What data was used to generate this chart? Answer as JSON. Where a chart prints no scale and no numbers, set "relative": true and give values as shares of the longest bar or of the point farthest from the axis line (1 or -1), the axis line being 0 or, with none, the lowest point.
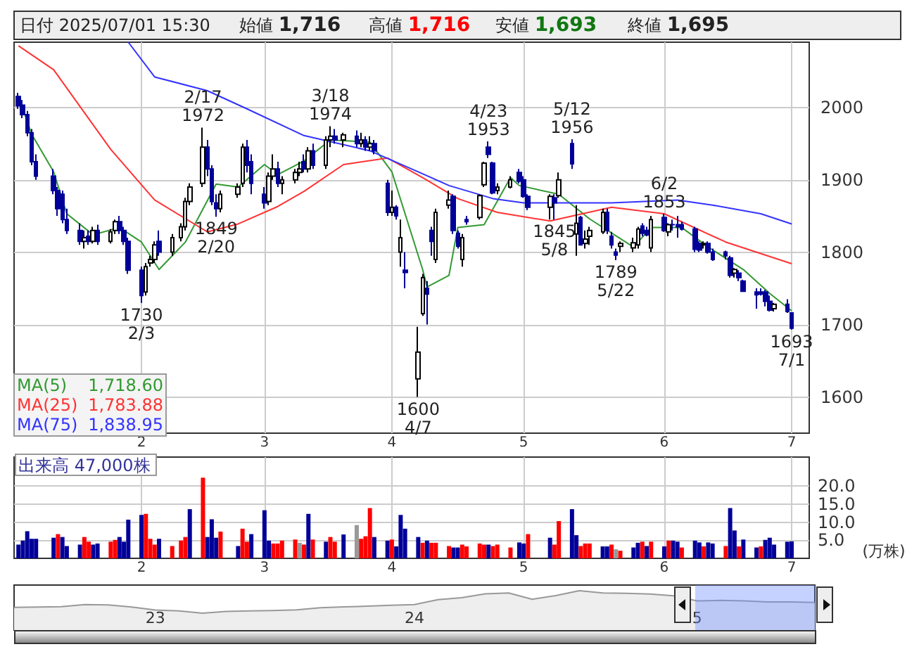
{
  "chart_data": [
    {
      "type": "candlestick",
      "xlim": [
        "2025-01-05",
        "2025-07-05"
      ],
      "xticks": [
        {
          "value": "2025-02-03",
          "label": "2"
        },
        {
          "value": "2025-03-03",
          "label": "3"
        },
        {
          "value": "2025-04-01",
          "label": "4"
        },
        {
          "value": "2025-05-01",
          "label": "5"
        },
        {
          "value": "2025-06-02",
          "label": "6"
        },
        {
          "value": "2025-07-01",
          "label": "7"
        }
      ],
      "ylim": [
        1550,
        2090
      ],
      "yticks": [
        1600,
        1700,
        1800,
        1900,
        2000
      ],
      "grid": true,
      "x": [
        "2025-01-06",
        "2025-01-07",
        "2025-01-08",
        "2025-01-09",
        "2025-01-10",
        "2025-01-14",
        "2025-01-15",
        "2025-01-16",
        "2025-01-17",
        "2025-01-20",
        "2025-01-21",
        "2025-01-22",
        "2025-01-23",
        "2025-01-24",
        "2025-01-27",
        "2025-01-28",
        "2025-01-29",
        "2025-01-30",
        "2025-01-31",
        "2025-02-03",
        "2025-02-04",
        "2025-02-05",
        "2025-02-06",
        "2025-02-07",
        "2025-02-10",
        "2025-02-12",
        "2025-02-13",
        "2025-02-14",
        "2025-02-17",
        "2025-02-18",
        "2025-02-19",
        "2025-02-20",
        "2025-02-21",
        "2025-02-25",
        "2025-02-26",
        "2025-02-27",
        "2025-02-28",
        "2025-03-03",
        "2025-03-04",
        "2025-03-05",
        "2025-03-06",
        "2025-03-07",
        "2025-03-10",
        "2025-03-11",
        "2025-03-12",
        "2025-03-13",
        "2025-03-14",
        "2025-03-17",
        "2025-03-18",
        "2025-03-19",
        "2025-03-21",
        "2025-03-24",
        "2025-03-25",
        "2025-03-26",
        "2025-03-27",
        "2025-03-28",
        "2025-03-31",
        "2025-04-01",
        "2025-04-02",
        "2025-04-03",
        "2025-04-04",
        "2025-04-07",
        "2025-04-08",
        "2025-04-09",
        "2025-04-10",
        "2025-04-11",
        "2025-04-14",
        "2025-04-15",
        "2025-04-16",
        "2025-04-17",
        "2025-04-18",
        "2025-04-21",
        "2025-04-22",
        "2025-04-23",
        "2025-04-24",
        "2025-04-25",
        "2025-04-28",
        "2025-04-30",
        "2025-05-01",
        "2025-05-02",
        "2025-05-07",
        "2025-05-08",
        "2025-05-09",
        "2025-05-12",
        "2025-05-13",
        "2025-05-14",
        "2025-05-15",
        "2025-05-16",
        "2025-05-19",
        "2025-05-20",
        "2025-05-21",
        "2025-05-22",
        "2025-05-23",
        "2025-05-26",
        "2025-05-27",
        "2025-05-28",
        "2025-05-29",
        "2025-05-30",
        "2025-06-02",
        "2025-06-03",
        "2025-06-04",
        "2025-06-05",
        "2025-06-06",
        "2025-06-09",
        "2025-06-10",
        "2025-06-11",
        "2025-06-12",
        "2025-06-13",
        "2025-06-16",
        "2025-06-17",
        "2025-06-18",
        "2025-06-19",
        "2025-06-20",
        "2025-06-23",
        "2025-06-24",
        "2025-06-25",
        "2025-06-26",
        "2025-06-27",
        "2025-06-30",
        "2025-07-01"
      ],
      "ohlc": [
        [
          2015,
          2020,
          1998,
          2002
        ],
        [
          2003,
          2010,
          1985,
          1990
        ],
        [
          1990,
          1995,
          1960,
          1965
        ],
        [
          1965,
          1970,
          1920,
          1925
        ],
        [
          1925,
          1935,
          1900,
          1905
        ],
        [
          1905,
          1915,
          1880,
          1885
        ],
        [
          1885,
          1890,
          1850,
          1860
        ],
        [
          1880,
          1885,
          1840,
          1845
        ],
        [
          1845,
          1860,
          1825,
          1830
        ],
        [
          1830,
          1840,
          1810,
          1815
        ],
        [
          1815,
          1830,
          1805,
          1820
        ],
        [
          1822,
          1830,
          1810,
          1815
        ],
        [
          1815,
          1835,
          1812,
          1830
        ],
        [
          1830,
          1838,
          1810,
          1815
        ],
        [
          1815,
          1832,
          1812,
          1828
        ],
        [
          1830,
          1845,
          1825,
          1842
        ],
        [
          1842,
          1850,
          1825,
          1830
        ],
        [
          1830,
          1835,
          1810,
          1815
        ],
        [
          1815,
          1820,
          1770,
          1775
        ],
        [
          1775,
          1780,
          1730,
          1740
        ],
        [
          1745,
          1785,
          1740,
          1780
        ],
        [
          1785,
          1795,
          1780,
          1790
        ],
        [
          1790,
          1815,
          1785,
          1810
        ],
        [
          1815,
          1830,
          1795,
          1800
        ],
        [
          1800,
          1825,
          1795,
          1820
        ],
        [
          1820,
          1840,
          1815,
          1835
        ],
        [
          1835,
          1875,
          1830,
          1870
        ],
        [
          1870,
          1895,
          1865,
          1890
        ],
        [
          1895,
          1972,
          1890,
          1945
        ],
        [
          1945,
          1955,
          1905,
          1915
        ],
        [
          1915,
          1920,
          1865,
          1870
        ],
        [
          1868,
          1880,
          1849,
          1860
        ],
        [
          1860,
          1885,
          1855,
          1880
        ],
        [
          1880,
          1895,
          1875,
          1890
        ],
        [
          1895,
          1950,
          1890,
          1945
        ],
        [
          1945,
          1955,
          1910,
          1920
        ],
        [
          1925,
          1935,
          1880,
          1895
        ],
        [
          1880,
          1890,
          1860,
          1868
        ],
        [
          1870,
          1910,
          1865,
          1905
        ],
        [
          1905,
          1935,
          1900,
          1915
        ],
        [
          1915,
          1925,
          1890,
          1895
        ],
        [
          1895,
          1905,
          1880,
          1900
        ],
        [
          1900,
          1915,
          1895,
          1910
        ],
        [
          1910,
          1925,
          1905,
          1915
        ],
        [
          1925,
          1935,
          1910,
          1915
        ],
        [
          1915,
          1945,
          1910,
          1940
        ],
        [
          1940,
          1950,
          1915,
          1920
        ],
        [
          1920,
          1960,
          1915,
          1955
        ],
        [
          1955,
          1974,
          1945,
          1960
        ],
        [
          1960,
          1970,
          1950,
          1955
        ],
        [
          1955,
          1965,
          1945,
          1962
        ],
        [
          1960,
          1968,
          1945,
          1950
        ],
        [
          1950,
          1965,
          1945,
          1955
        ],
        [
          1955,
          1960,
          1940,
          1945
        ],
        [
          1945,
          1960,
          1940,
          1950
        ],
        [
          1950,
          1955,
          1935,
          1940
        ],
        [
          1895,
          1900,
          1850,
          1855
        ],
        [
          1855,
          1885,
          1850,
          1862
        ],
        [
          1862,
          1865,
          1845,
          1850
        ],
        [
          1800,
          1845,
          1780,
          1820
        ],
        [
          1775,
          1800,
          1750,
          1772
        ],
        [
          1625,
          1697,
          1600,
          1662
        ],
        [
          1715,
          1770,
          1712,
          1765
        ],
        [
          1750,
          1760,
          1700,
          1742
        ],
        [
          1830,
          1835,
          1795,
          1815
        ],
        [
          1790,
          1860,
          1785,
          1855
        ],
        [
          1865,
          1885,
          1860,
          1872
        ],
        [
          1877,
          1880,
          1825,
          1830
        ],
        [
          1826,
          1830,
          1805,
          1808
        ],
        [
          1790,
          1825,
          1780,
          1820
        ],
        [
          1845,
          1850,
          1838,
          1842
        ],
        [
          1848,
          1880,
          1845,
          1878
        ],
        [
          1893,
          1925,
          1890,
          1923
        ],
        [
          1945,
          1953,
          1930,
          1935
        ],
        [
          1923,
          1925,
          1880,
          1882
        ],
        [
          1885,
          1895,
          1880,
          1890
        ],
        [
          1890,
          1905,
          1888,
          1900
        ],
        [
          1910,
          1915,
          1895,
          1898
        ],
        [
          1900,
          1905,
          1875,
          1877
        ],
        [
          1877,
          1880,
          1858,
          1862
        ],
        [
          1862,
          1880,
          1845,
          1877
        ],
        [
          1875,
          1880,
          1845,
          1868
        ],
        [
          1878,
          1910,
          1875,
          1900
        ],
        [
          1950,
          1956,
          1915,
          1922
        ],
        [
          1825,
          1865,
          1795,
          1840
        ],
        [
          1848,
          1850,
          1810,
          1810
        ],
        [
          1812,
          1830,
          1805,
          1818
        ],
        [
          1822,
          1835,
          1810,
          1830
        ],
        [
          1828,
          1860,
          1825,
          1855
        ],
        [
          1855,
          1860,
          1825,
          1830
        ],
        [
          1822,
          1828,
          1805,
          1810
        ],
        [
          1800,
          1805,
          1789,
          1796
        ],
        [
          1808,
          1815,
          1800,
          1812
        ],
        [
          1806,
          1820,
          1800,
          1813
        ],
        [
          1810,
          1835,
          1805,
          1832
        ],
        [
          1836,
          1840,
          1822,
          1826
        ],
        [
          1830,
          1835,
          1822,
          1824
        ],
        [
          1806,
          1850,
          1800,
          1845
        ],
        [
          1848,
          1853,
          1828,
          1830
        ],
        [
          1828,
          1840,
          1822,
          1838
        ],
        [
          1838,
          1845,
          1830,
          1838
        ],
        [
          1838,
          1850,
          1820,
          1835
        ],
        [
          1838,
          1842,
          1830,
          1832
        ],
        [
          1832,
          1835,
          1800,
          1804
        ],
        [
          1812,
          1815,
          1800,
          1803
        ],
        [
          1810,
          1815,
          1805,
          1812
        ],
        [
          1812,
          1815,
          1798,
          1800
        ],
        [
          1800,
          1805,
          1788,
          1790
        ],
        [
          1800,
          1802,
          1790,
          1795
        ],
        [
          1792,
          1795,
          1765,
          1768
        ],
        [
          1771,
          1778,
          1765,
          1776
        ],
        [
          1771,
          1775,
          1760,
          1765
        ],
        [
          1760,
          1762,
          1745,
          1746
        ],
        [
          1745,
          1750,
          1722,
          1741
        ],
        [
          1745,
          1750,
          1740,
          1742
        ],
        [
          1745,
          1748,
          1725,
          1732
        ],
        [
          1732,
          1740,
          1718,
          1720
        ],
        [
          1722,
          1730,
          1718,
          1728
        ],
        [
          1728,
          1735,
          1716,
          1718
        ],
        [
          1716,
          1716,
          1693,
          1695
        ]
      ],
      "colors": [
        "#000099",
        "#000099",
        "#000099",
        "#000099",
        "#000099",
        "#000099",
        "#000099",
        "#000099",
        "#000099",
        "#000099",
        "#ffffff",
        "#000099",
        "#ffffff",
        "#000099",
        "#ffffff",
        "#ffffff",
        "#000099",
        "#000099",
        "#000099",
        "#000099",
        "#ffffff",
        "#ffffff",
        "#ffffff",
        "#000099",
        "#ffffff",
        "#ffffff",
        "#ffffff",
        "#ffffff",
        "#ffffff",
        "#000099",
        "#000099",
        "#000099",
        "#ffffff",
        "#ffffff",
        "#ffffff",
        "#000099",
        "#000099",
        "#000099",
        "#ffffff",
        "#ffffff",
        "#000099",
        "#ffffff",
        "#ffffff",
        "#ffffff",
        "#000099",
        "#ffffff",
        "#000099",
        "#ffffff",
        "#ffffff",
        "#000099",
        "#ffffff",
        "#000099",
        "#ffffff",
        "#000099",
        "#ffffff",
        "#000099",
        "#000099",
        "#ffffff",
        "#000099",
        "#ffffff",
        "#000099",
        "#ffffff",
        "#ffffff",
        "#000099",
        "#000099",
        "#ffffff",
        "#ffffff",
        "#000099",
        "#000099",
        "#ffffff",
        "#000099",
        "#ffffff",
        "#ffffff",
        "#000099",
        "#000099",
        "#ffffff",
        "#ffffff",
        "#000099",
        "#000099",
        "#000099",
        "#ffffff",
        "#000099",
        "#ffffff",
        "#000099",
        "#ffffff",
        "#000099",
        "#ffffff",
        "#ffffff",
        "#ffffff",
        "#000099",
        "#000099",
        "#000099",
        "#ffffff",
        "#ffffff",
        "#ffffff",
        "#000099",
        "#000099",
        "#ffffff",
        "#000099",
        "#ffffff",
        "#000099",
        "#000099",
        "#000099",
        "#000099",
        "#000099",
        "#ffffff",
        "#000099",
        "#000099",
        "#000099",
        "#000099",
        "#ffffff",
        "#000099",
        "#000099",
        "#000099",
        "#000099",
        "#000099",
        "#000099",
        "#ffffff",
        "#000099",
        "#000099"
      ],
      "series": [
        {
          "type": "line",
          "name": "MA(5)",
          "color": "#339933",
          "x": [
            "2025-01-06",
            "2025-01-09",
            "2025-01-14",
            "2025-01-17",
            "2025-01-23",
            "2025-01-29",
            "2025-02-03",
            "2025-02-07",
            "2025-02-13",
            "2025-02-20",
            "2025-02-25",
            "2025-03-03",
            "2025-03-06",
            "2025-03-12",
            "2025-03-18",
            "2025-03-27",
            "2025-04-01",
            "2025-04-04",
            "2025-04-08",
            "2025-04-09",
            "2025-04-14",
            "2025-04-16",
            "2025-04-22",
            "2025-04-28",
            "2025-04-30",
            "2025-05-09",
            "2025-05-16",
            "2025-05-26",
            "2025-05-30",
            "2025-06-06",
            "2025-06-12",
            "2025-06-20",
            "2025-06-26",
            "2025-07-01"
          ],
          "values": [
            2016,
            1963,
            1911,
            1853,
            1824,
            1834,
            1814,
            1776,
            1814,
            1894,
            1890,
            1921,
            1907,
            1926,
            1955,
            1952,
            1911,
            1853,
            1776,
            1752,
            1768,
            1834,
            1838,
            1903,
            1892,
            1880,
            1846,
            1807,
            1834,
            1834,
            1807,
            1776,
            1743,
            1719
          ]
        },
        {
          "type": "line",
          "name": "MA(25)",
          "color": "#ff3333",
          "x": [
            "2025-01-06",
            "2025-01-14",
            "2025-01-27",
            "2025-02-06",
            "2025-02-18",
            "2025-02-25",
            "2025-03-06",
            "2025-03-12",
            "2025-03-21",
            "2025-03-31",
            "2025-04-08",
            "2025-04-16",
            "2025-04-25",
            "2025-05-07",
            "2025-05-21",
            "2025-06-02",
            "2025-06-16",
            "2025-07-01"
          ],
          "values": [
            2085,
            2052,
            1942,
            1872,
            1828,
            1839,
            1863,
            1884,
            1921,
            1930,
            1903,
            1874,
            1855,
            1843,
            1862,
            1853,
            1814,
            1784
          ]
        },
        {
          "type": "line",
          "name": "MA(75)",
          "color": "#3333ff",
          "x": [
            "2025-01-31",
            "2025-02-06",
            "2025-02-18",
            "2025-02-27",
            "2025-03-12",
            "2025-03-27",
            "2025-04-07",
            "2025-04-14",
            "2025-04-24",
            "2025-05-01",
            "2025-05-21",
            "2025-06-05",
            "2025-06-13",
            "2025-06-24",
            "2025-07-01"
          ],
          "values": [
            2090,
            2042,
            2023,
            1998,
            1961,
            1940,
            1911,
            1892,
            1874,
            1868,
            1868,
            1872,
            1865,
            1853,
            1839
          ]
        }
      ],
      "annotations": [
        "日付 2025/07/01 15:30",
        "始値 1,716",
        "高値 1,716",
        "安値 1,693",
        "終値 1,695",
        "1,718.60",
        "1,783.88",
        "1,838.95",
        {
          "text": "2/17\n1972",
          "x": "2025-02-17",
          "y": 1972
        },
        {
          "text": "3/18\n1974",
          "x": "2025-03-18",
          "y": 1974
        },
        {
          "text": "4/23\n1953",
          "x": "2025-04-23",
          "y": 1953
        },
        {
          "text": "5/12\n1956",
          "x": "2025-05-12",
          "y": 1956
        },
        {
          "text": "6/2\n1853",
          "x": "2025-06-02",
          "y": 1853
        },
        {
          "text": "1849\n2/20",
          "x": "2025-02-20",
          "y": 1849
        },
        {
          "text": "1730\n2/3",
          "x": "2025-02-03",
          "y": 1730
        },
        {
          "text": "1600\n4/7",
          "x": "2025-04-07",
          "y": 1600
        },
        {
          "text": "1845\n5/8",
          "x": "2025-05-08",
          "y": 1845
        },
        {
          "text": "1789\n5/22",
          "x": "2025-05-22",
          "y": 1789
        },
        {
          "text": "1693\n7/1",
          "x": "2025-07-01",
          "y": 1693
        }
      ]
    },
    {
      "type": "bar",
      "title": "出来高 47,000株",
      "ylabel": "(万株)",
      "grid": true,
      "xlim": [
        "2025-01-05",
        "2025-07-05"
      ],
      "xticks": [
        {
          "value": "2025-02-03",
          "label": "2"
        },
        {
          "value": "2025-03-03",
          "label": "3"
        },
        {
          "value": "2025-04-01",
          "label": "4"
        },
        {
          "value": "2025-05-01",
          "label": "5"
        },
        {
          "value": "2025-06-02",
          "label": "6"
        },
        {
          "value": "2025-07-01",
          "label": "7"
        }
      ],
      "ylim": [
        0,
        28
      ],
      "yticks": [
        {
          "value": 5,
          "label": "5.0"
        },
        {
          "value": 10,
          "label": "10.0"
        },
        {
          "value": 15,
          "label": "15.0"
        },
        {
          "value": 20,
          "label": "20.0"
        }
      ],
      "x": [
        "2025-01-06",
        "2025-01-07",
        "2025-01-08",
        "2025-01-09",
        "2025-01-10",
        "2025-01-14",
        "2025-01-15",
        "2025-01-16",
        "2025-01-17",
        "2025-01-20",
        "2025-01-21",
        "2025-01-22",
        "2025-01-23",
        "2025-01-24",
        "2025-01-27",
        "2025-01-28",
        "2025-01-29",
        "2025-01-30",
        "2025-01-31",
        "2025-02-03",
        "2025-02-04",
        "2025-02-05",
        "2025-02-06",
        "2025-02-07",
        "2025-02-10",
        "2025-02-12",
        "2025-02-13",
        "2025-02-14",
        "2025-02-17",
        "2025-02-18",
        "2025-02-19",
        "2025-02-20",
        "2025-02-21",
        "2025-02-25",
        "2025-02-26",
        "2025-02-27",
        "2025-02-28",
        "2025-03-03",
        "2025-03-04",
        "2025-03-05",
        "2025-03-06",
        "2025-03-07",
        "2025-03-10",
        "2025-03-11",
        "2025-03-12",
        "2025-03-13",
        "2025-03-14",
        "2025-03-17",
        "2025-03-18",
        "2025-03-19",
        "2025-03-21",
        "2025-03-24",
        "2025-03-25",
        "2025-03-26",
        "2025-03-27",
        "2025-03-28",
        "2025-03-31",
        "2025-04-01",
        "2025-04-02",
        "2025-04-03",
        "2025-04-04",
        "2025-04-07",
        "2025-04-08",
        "2025-04-09",
        "2025-04-10",
        "2025-04-11",
        "2025-04-14",
        "2025-04-15",
        "2025-04-16",
        "2025-04-17",
        "2025-04-18",
        "2025-04-21",
        "2025-04-22",
        "2025-04-23",
        "2025-04-24",
        "2025-04-25",
        "2025-04-28",
        "2025-04-30",
        "2025-05-01",
        "2025-05-02",
        "2025-05-07",
        "2025-05-08",
        "2025-05-09",
        "2025-05-12",
        "2025-05-13",
        "2025-05-14",
        "2025-05-15",
        "2025-05-16",
        "2025-05-19",
        "2025-05-20",
        "2025-05-21",
        "2025-05-22",
        "2025-05-23",
        "2025-05-26",
        "2025-05-27",
        "2025-05-28",
        "2025-05-29",
        "2025-05-30",
        "2025-06-02",
        "2025-06-03",
        "2025-06-04",
        "2025-06-05",
        "2025-06-06",
        "2025-06-09",
        "2025-06-10",
        "2025-06-11",
        "2025-06-12",
        "2025-06-13",
        "2025-06-16",
        "2025-06-17",
        "2025-06-18",
        "2025-06-19",
        "2025-06-20",
        "2025-06-23",
        "2025-06-24",
        "2025-06-25",
        "2025-06-26",
        "2025-06-27",
        "2025-06-30",
        "2025-07-01"
      ],
      "values": [
        3.8,
        4.9,
        7.5,
        5.4,
        5.4,
        5.7,
        6.7,
        5.9,
        3.4,
        3.8,
        5.9,
        4.6,
        3.8,
        4.1,
        4.6,
        5.1,
        5.9,
        4.6,
        10.7,
        12.0,
        12.3,
        5.4,
        3.8,
        5.4,
        3.4,
        4.9,
        5.9,
        13.6,
        22.3,
        5.9,
        10.8,
        5.7,
        7.4,
        3.4,
        8.2,
        4.6,
        6.7,
        13.3,
        4.9,
        4.1,
        4.1,
        4.9,
        5.2,
        4.3,
        3.8,
        12.3,
        5.2,
        4.6,
        5.9,
        4.6,
        6.6,
        9.2,
        5.4,
        6.1,
        13.9,
        5.9,
        4.9,
        5.2,
        3.3,
        12.0,
        8.2,
        5.9,
        4.3,
        4.9,
        4.3,
        4.3,
        3.4,
        3.0,
        3.0,
        3.8,
        3.3,
        4.1,
        3.8,
        3.8,
        3.4,
        3.8,
        3.0,
        4.4,
        4.1,
        6.7,
        5.7,
        3.8,
        10.3,
        13.6,
        6.4,
        3.4,
        4.1,
        4.1,
        3.3,
        3.3,
        3.8,
        2.5,
        2.1,
        3.0,
        4.3,
        4.6,
        3.4,
        4.6,
        3.3,
        4.9,
        4.9,
        4.6,
        3.0,
        4.9,
        4.4,
        3.3,
        4.4,
        4.1,
        3.4,
        13.9,
        7.7,
        3.3,
        5.2,
        3.0,
        3.3,
        5.1,
        5.7,
        3.8,
        4.6,
        4.7
      ],
      "colors": [
        "#000099",
        "#000099",
        "#000099",
        "#000099",
        "#000099",
        "#000099",
        "#ff0000",
        "#000099",
        "#000099",
        "#000099",
        "#ff0000",
        "#ff0000",
        "#000099",
        "#000099",
        "#ff0000",
        "#ff0000",
        "#000099",
        "#000099",
        "#000099",
        "#000099",
        "#ff0000",
        "#ff0000",
        "#ff0000",
        "#000099",
        "#ff0000",
        "#ff0000",
        "#ff0000",
        "#000099",
        "#ff0000",
        "#000099",
        "#000099",
        "#000099",
        "#ff0000",
        "#000099",
        "#ff0000",
        "#ff0000",
        "#000099",
        "#000099",
        "#000099",
        "#ff0000",
        "#ff0000",
        "#ff0000",
        "#ff0000",
        "#999999",
        "#ff0000",
        "#000099",
        "#ff0000",
        "#000099",
        "#ff0000",
        "#ff0000",
        "#000099",
        "#999999",
        "#ff0000",
        "#ff0000",
        "#ff0000",
        "#000099",
        "#000099",
        "#ff0000",
        "#000099",
        "#000099",
        "#000099",
        "#000099",
        "#ff0000",
        "#000099",
        "#ff0000",
        "#ff0000",
        "#ff0000",
        "#000099",
        "#000099",
        "#ff0000",
        "#ff0000",
        "#ff0000",
        "#ff0000",
        "#000099",
        "#ff0000",
        "#ff0000",
        "#ff0000",
        "#000099",
        "#000099",
        "#ff0000",
        "#000099",
        "#ff0000",
        "#ff0000",
        "#000099",
        "#000099",
        "#ff0000",
        "#ff0000",
        "#ff0000",
        "#000099",
        "#000099",
        "#ff0000",
        "#999999",
        "#ff0000",
        "#000099",
        "#000099",
        "#ff0000",
        "#000099",
        "#ff0000",
        "#000099",
        "#ff0000",
        "#000099",
        "#000099",
        "#ff0000",
        "#000099",
        "#000099",
        "#ff0000",
        "#000099",
        "#000099",
        "#ff0000",
        "#000099",
        "#000099",
        "#ff0000",
        "#000099",
        "#000099",
        "#ff0000",
        "#000099",
        "#000099",
        "#000099",
        "#000099",
        "#000099"
      ]
    },
    {
      "type": "area",
      "relative": true,
      "color": "#999999",
      "categories": [
        null,
        null,
        null,
        null,
        null,
        null,
        "23",
        null,
        null,
        null,
        null,
        null,
        null,
        null,
        null,
        null,
        null,
        "24",
        null,
        null,
        null,
        null,
        null,
        null,
        null,
        null,
        null,
        null,
        null,
        "5",
        null,
        null,
        null,
        null,
        null
      ],
      "values": [
        0.26,
        0.27,
        0.29,
        0.38,
        0.37,
        0.27,
        0.14,
        0.1,
        0,
        0.08,
        0.1,
        0.12,
        0.15,
        0.24,
        0.28,
        0.31,
        0.35,
        0.38,
        0.6,
        0.69,
        0.86,
        0.9,
        0.62,
        0.78,
        1,
        0.9,
        0.88,
        0.85,
        0.77,
        0.55,
        0.57,
        0.55,
        0.5,
        0.5,
        0.48
      ]
    }
  ]
}
